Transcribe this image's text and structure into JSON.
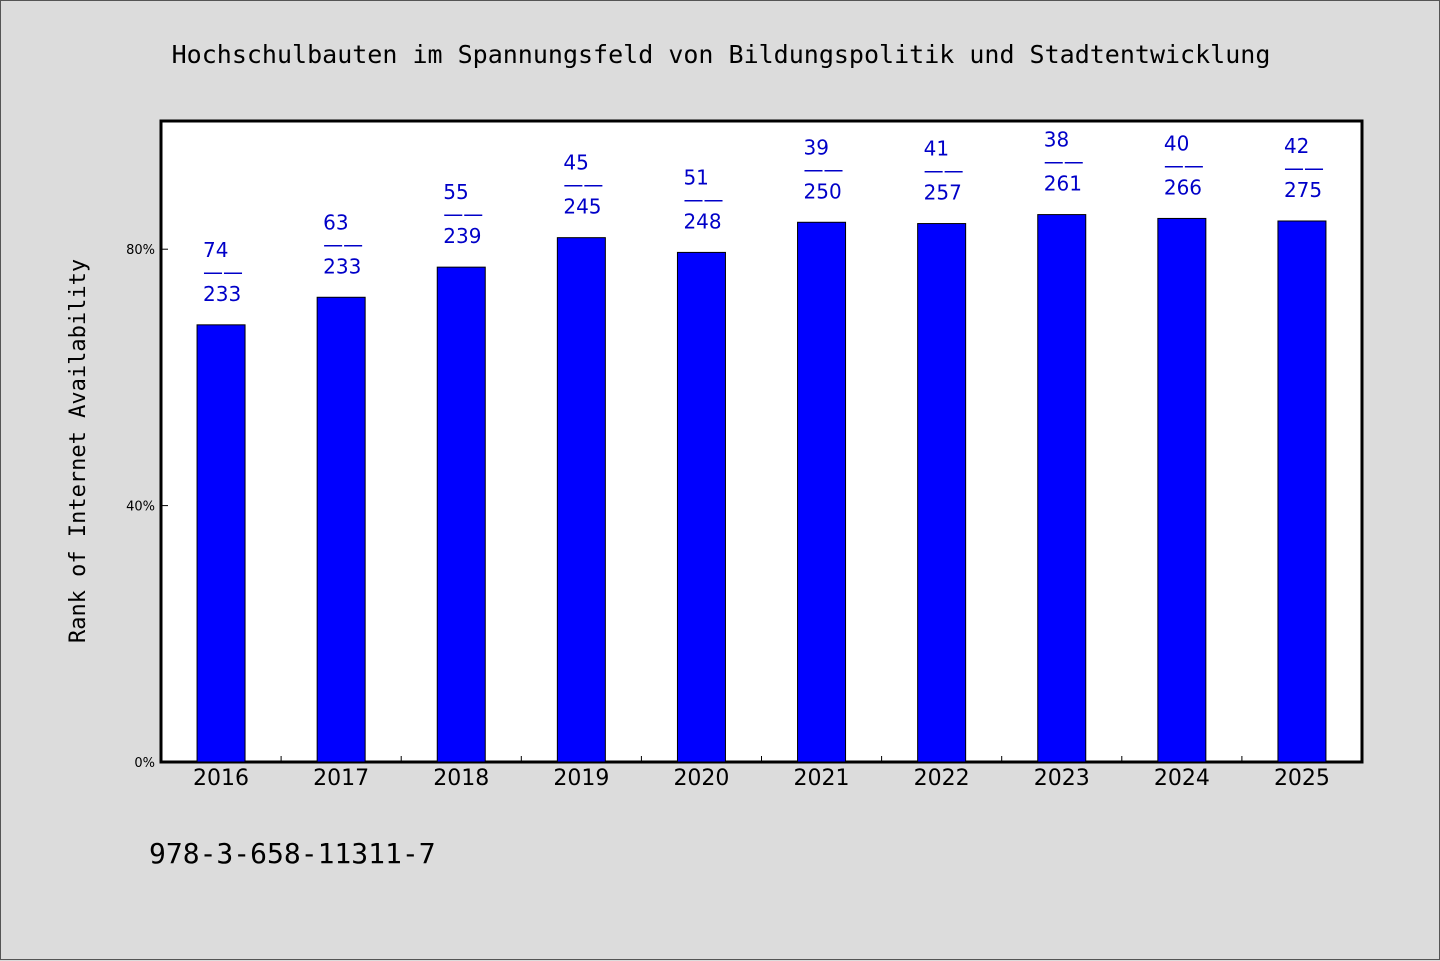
{
  "chart_data": {
    "type": "bar",
    "title": "Hochschulbauten im Spannungsfeld von Bildungspolitik und Stadtentwicklung",
    "ylabel": "Rank of Internet Availability",
    "xlabel": "",
    "categories": [
      "2016",
      "2017",
      "2018",
      "2019",
      "2020",
      "2021",
      "2022",
      "2023",
      "2024",
      "2025"
    ],
    "values": [
      68.2,
      72.5,
      77.2,
      81.8,
      79.5,
      84.2,
      84.0,
      85.4,
      84.8,
      84.4
    ],
    "ranks": [
      "74",
      "63",
      "55",
      "45",
      "51",
      "39",
      "41",
      "38",
      "40",
      "42"
    ],
    "totals": [
      "233",
      "233",
      "239",
      "245",
      "248",
      "250",
      "257",
      "261",
      "266",
      "275"
    ],
    "separator": "——",
    "ylim": [
      0,
      100
    ],
    "yticks": [
      0,
      40,
      80
    ],
    "ytick_labels": [
      "0%",
      "40%",
      "80%"
    ],
    "bar_color": "#0000ff",
    "label_color": "#0000c8",
    "grid": false,
    "legend": "none"
  },
  "footer": {
    "isbn": "978-3-658-11311-7"
  }
}
